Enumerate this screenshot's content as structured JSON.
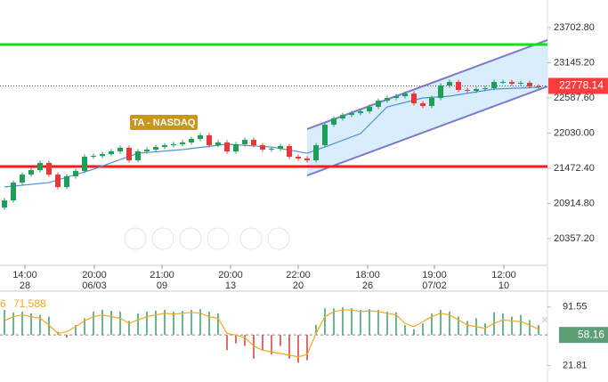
{
  "chart_data": [
    {
      "type": "candlestick",
      "annotation": "TA - NASDAQ",
      "up_color": "#1f9e5a",
      "down_color": "#e53935",
      "ylim": [
        19933,
        24140
      ],
      "yticks": [
        {
          "value": 23702.8,
          "label": "23702.80"
        },
        {
          "value": 23145.2,
          "label": "23145.20"
        },
        {
          "value": 22587.6,
          "label": "22587.60"
        },
        {
          "value": 22030,
          "label": "22030.00"
        },
        {
          "value": 21472.4,
          "label": "21472.40"
        },
        {
          "value": 20914.8,
          "label": "20914.80"
        },
        {
          "value": 20357.2,
          "label": "20357.20"
        }
      ],
      "xticks": [
        {
          "value": 2.3,
          "label": "14:00",
          "date": "28"
        },
        {
          "value": 10.1,
          "label": "20:00",
          "date": "06/03"
        },
        {
          "value": 17.7,
          "label": "21:00",
          "date": "09"
        },
        {
          "value": 25.4,
          "label": "20:00",
          "date": "13"
        },
        {
          "value": 33,
          "label": "22:00",
          "date": "20"
        },
        {
          "value": 40.8,
          "label": "18:00",
          "date": "26"
        },
        {
          "value": 48.3,
          "label": "19:00",
          "date": "07/02"
        },
        {
          "value": 56.1,
          "label": "12:00",
          "date": "10"
        }
      ],
      "candles": [
        [
          20850,
          20998,
          20815,
          20963
        ],
        [
          20963,
          21280,
          20928,
          21245
        ],
        [
          21245,
          21407,
          21210,
          21372
        ],
        [
          21372,
          21478,
          21337,
          21443
        ],
        [
          21443,
          21591,
          21408,
          21556
        ],
        [
          21556,
          21591,
          21337,
          21372
        ],
        [
          21372,
          21407,
          21140,
          21175
        ],
        [
          21175,
          21379,
          21140,
          21344
        ],
        [
          21344,
          21464,
          21309,
          21429
        ],
        [
          21429,
          21690,
          21394,
          21655
        ],
        [
          21655,
          21704,
          21620,
          21669
        ],
        [
          21669,
          21732,
          21634,
          21697
        ],
        [
          21697,
          21775,
          21662,
          21740
        ],
        [
          21740,
          21831,
          21705,
          21796
        ],
        [
          21796,
          21831,
          21563,
          21598
        ],
        [
          21598,
          21775,
          21563,
          21740
        ],
        [
          21740,
          21803,
          21705,
          21768
        ],
        [
          21768,
          21845,
          21733,
          21810
        ],
        [
          21810,
          21873,
          21775,
          21838
        ],
        [
          21838,
          21888,
          21803,
          21853
        ],
        [
          21853,
          21916,
          21818,
          21881
        ],
        [
          21881,
          21972,
          21846,
          21937
        ],
        [
          21937,
          22029,
          21902,
          21994
        ],
        [
          21994,
          22029,
          21803,
          21838
        ],
        [
          21838,
          21916,
          21803,
          21881
        ],
        [
          21881,
          21916,
          21705,
          21740
        ],
        [
          21740,
          21888,
          21705,
          21853
        ],
        [
          21853,
          21958,
          21818,
          21923
        ],
        [
          21923,
          21958,
          21803,
          21838
        ],
        [
          21838,
          21873,
          21733,
          21768
        ],
        [
          21768,
          21817,
          21733,
          21782
        ],
        [
          21782,
          21859,
          21747,
          21824
        ],
        [
          21824,
          21859,
          21620,
          21655
        ],
        [
          21655,
          21690,
          21592,
          21627
        ],
        [
          21627,
          21662,
          21563,
          21598
        ],
        [
          21598,
          21873,
          21563,
          21838
        ],
        [
          21838,
          22198,
          21803,
          22163
        ],
        [
          22163,
          22297,
          22128,
          22262
        ],
        [
          22262,
          22353,
          22227,
          22318
        ],
        [
          22318,
          22382,
          22283,
          22347
        ],
        [
          22347,
          22410,
          22312,
          22375
        ],
        [
          22375,
          22481,
          22340,
          22446
        ],
        [
          22446,
          22579,
          22411,
          22544
        ],
        [
          22544,
          22622,
          22509,
          22587
        ],
        [
          22587,
          22650,
          22552,
          22615
        ],
        [
          22615,
          22692,
          22580,
          22657
        ],
        [
          22657,
          22692,
          22467,
          22502
        ],
        [
          22502,
          22537,
          22425,
          22460
        ],
        [
          22460,
          22622,
          22425,
          22587
        ],
        [
          22587,
          22819,
          22552,
          22784
        ],
        [
          22784,
          22876,
          22749,
          22841
        ],
        [
          22841,
          22876,
          22679,
          22714
        ],
        [
          22714,
          22749,
          22665,
          22700
        ],
        [
          22700,
          22763,
          22665,
          22728
        ],
        [
          22728,
          22777,
          22693,
          22742
        ],
        [
          22742,
          22876,
          22707,
          22841
        ],
        [
          22841,
          22876,
          22806,
          22841
        ],
        [
          22841,
          22876,
          22778,
          22813
        ],
        [
          22813,
          22862,
          22778,
          22827
        ],
        [
          22827,
          22862,
          22735,
          22770
        ],
        [
          22770,
          22805,
          22721,
          22756
        ]
      ],
      "ma": {
        "color": "#4a90e2",
        "x": [
          0,
          5,
          10,
          15,
          20,
          25,
          30,
          34,
          36,
          40,
          43,
          47,
          50,
          55,
          60
        ],
        "values": [
          21175,
          21245,
          21457,
          21711,
          21768,
          21853,
          21810,
          21711,
          21810,
          22022,
          22446,
          22587,
          22615,
          22728,
          22756
        ]
      },
      "channel": {
        "color": "#7b7bcc",
        "fill": "#cfe8fb",
        "x": [
          34,
          61
        ],
        "upper": [
          22093,
          23505
        ],
        "lower": [
          21358,
          22770
        ]
      },
      "levels": [
        {
          "value": 23434,
          "color": "#16e016"
        },
        {
          "value": 21500,
          "color": "#ff1a1a"
        }
      ],
      "last_price": 22778.14,
      "last_price_color": "#ff3b3b"
    },
    {
      "type": "oscillator",
      "label_fragment": "6",
      "legend_value": 71.588,
      "line_color": "#f5a623",
      "up_color": "#3c9e6a",
      "down_color": "#d43b3b",
      "ylim": [
        2,
        107.2
      ],
      "yticks": [
        91.55,
        21.81
      ],
      "last_value": 58.16,
      "last_value_color": "#5d9e77",
      "histogram": [
        88,
        85,
        86,
        84,
        82,
        80,
        62,
        55,
        70,
        78,
        86,
        88,
        87,
        86,
        75,
        84,
        86,
        87,
        88,
        86,
        87,
        88,
        89,
        86,
        84,
        40,
        48,
        45,
        30,
        40,
        35,
        45,
        30,
        25,
        28,
        70,
        90,
        90,
        91,
        90,
        88,
        89,
        88,
        86,
        85,
        70,
        65,
        72,
        84,
        88,
        86,
        80,
        75,
        78,
        72,
        85,
        84,
        80,
        82,
        76,
        70
      ],
      "values": [
        75,
        80,
        82,
        80,
        78,
        70,
        60,
        62,
        68,
        75,
        80,
        82,
        80,
        78,
        72,
        76,
        80,
        82,
        84,
        83,
        84,
        85,
        84,
        80,
        78,
        60,
        58,
        55,
        45,
        40,
        38,
        36,
        34,
        32,
        35,
        60,
        80,
        86,
        88,
        88,
        86,
        87,
        86,
        84,
        82,
        72,
        68,
        74,
        80,
        84,
        82,
        76,
        70,
        68,
        66,
        72,
        76,
        75,
        74,
        70,
        65
      ]
    }
  ]
}
